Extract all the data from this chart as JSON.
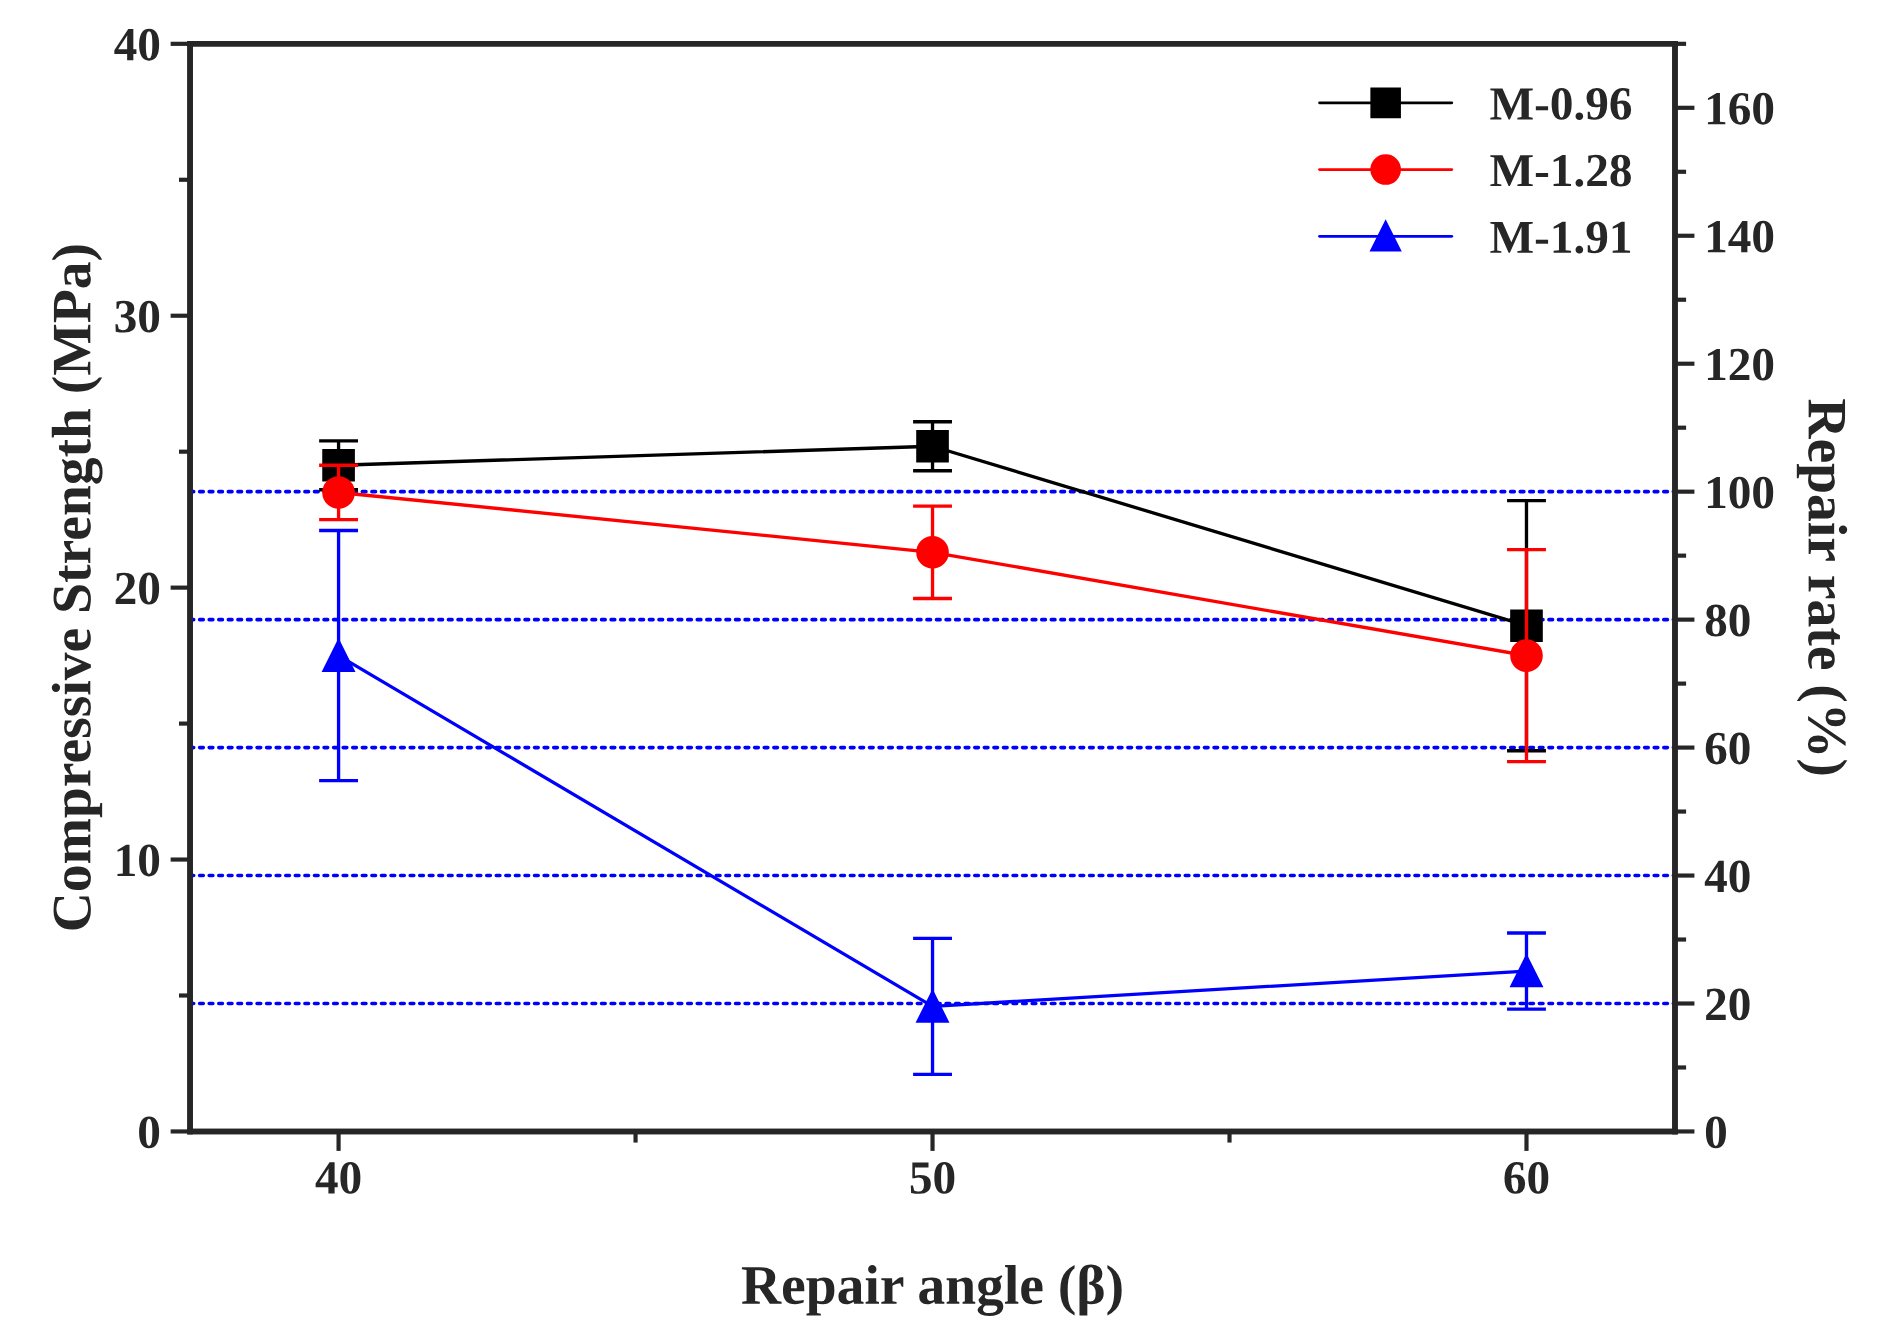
{
  "chart_data": {
    "type": "line",
    "xlabel": "Repair angle (β)",
    "ylabel": "Compressive Strength (MPa)",
    "y2label": "Repair rate (%)",
    "x": [
      40,
      50,
      60
    ],
    "xlim": [
      37.5,
      62.5
    ],
    "xticks": [
      40,
      50,
      60
    ],
    "ylim": [
      0,
      40
    ],
    "yticks": [
      0,
      10,
      20,
      30,
      40
    ],
    "y2lim": [
      0,
      170
    ],
    "y2ticks": [
      0,
      20,
      40,
      60,
      80,
      100,
      120,
      140,
      160
    ],
    "series": [
      {
        "name": "M-0.96",
        "color": "#000000",
        "marker": "square",
        "values": [
          24.5,
          25.2,
          18.6
        ],
        "errors": [
          0.9,
          0.9,
          4.6
        ]
      },
      {
        "name": "M-1.28",
        "color": "#ff0000",
        "marker": "circle",
        "values": [
          23.5,
          21.3,
          17.5
        ],
        "errors": [
          1.0,
          1.7,
          3.9
        ]
      },
      {
        "name": "M-1.91",
        "color": "#0000ff",
        "marker": "triangle",
        "values": [
          17.5,
          4.6,
          5.9
        ],
        "errors": [
          4.6,
          2.5,
          1.4
        ]
      }
    ],
    "ref_lines": [
      {
        "axis": "y2",
        "value": 20,
        "color": "#0000ff",
        "line_style": "dotted"
      },
      {
        "axis": "y2",
        "value": 40,
        "color": "#0000ff",
        "line_style": "dotted"
      },
      {
        "axis": "y2",
        "value": 60,
        "color": "#0000ff",
        "line_style": "dotted"
      },
      {
        "axis": "y2",
        "value": 80,
        "color": "#0000ff",
        "line_style": "dotted"
      },
      {
        "axis": "y2",
        "value": 100,
        "color": "#0000ff",
        "line_style": "dotted"
      }
    ],
    "legend": "top right",
    "grid": false
  }
}
